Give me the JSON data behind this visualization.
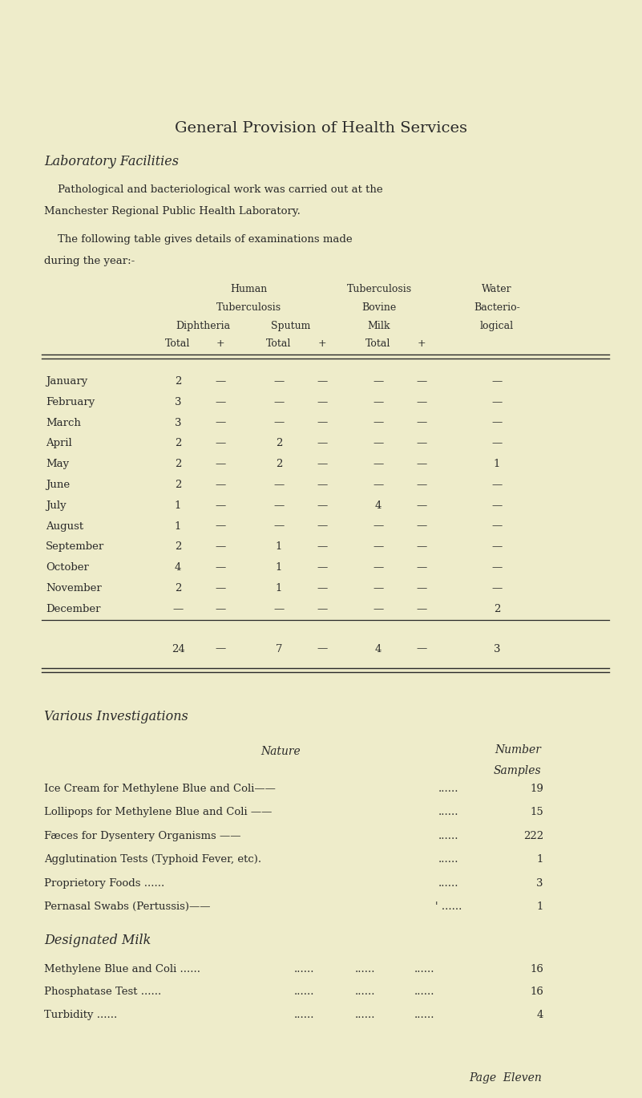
{
  "bg_color": "#eeecca",
  "text_color": "#2a2a2a",
  "title": "General Provision of Health Services",
  "subtitle": "Laboratory Facilities",
  "para1a": "Pathological and bacteriological work was carried out at the",
  "para1b": "Manchester Regional Public Health Laboratory.",
  "para2a": "The following table gives details of examinations made",
  "para2b": "during the year:-",
  "months": [
    "January",
    "February",
    "March",
    "April",
    "May",
    "June",
    "July",
    "August",
    "September",
    "October",
    "November",
    "December"
  ],
  "table_data": [
    [
      "2",
      "—",
      "—",
      "—",
      "—",
      "—",
      "—"
    ],
    [
      "3",
      "—",
      "—",
      "—",
      "—",
      "—",
      "—"
    ],
    [
      "3",
      "—",
      "—",
      "—",
      "—",
      "—",
      "—"
    ],
    [
      "2",
      "—",
      "2",
      "—",
      "—",
      "—",
      "—"
    ],
    [
      "2",
      "—",
      "2",
      "—",
      "—",
      "—",
      "1"
    ],
    [
      "2",
      "—",
      "—",
      "—",
      "—",
      "—",
      "—"
    ],
    [
      "1",
      "—",
      "—",
      "—",
      "4",
      "—",
      "—"
    ],
    [
      "1",
      "—",
      "—",
      "—",
      "—",
      "—",
      "—"
    ],
    [
      "2",
      "—",
      "1",
      "—",
      "—",
      "—",
      "—"
    ],
    [
      "4",
      "—",
      "1",
      "—",
      "—",
      "—",
      "—"
    ],
    [
      "2",
      "—",
      "1",
      "—",
      "—",
      "—",
      "—"
    ],
    [
      "—",
      "—",
      "—",
      "—",
      "—",
      "—",
      "2"
    ]
  ],
  "totals": [
    "24",
    "—",
    "7",
    "—",
    "4",
    "—",
    "3"
  ],
  "various_title": "Various Investigations",
  "various_nature": "Nature",
  "various_number": "Number",
  "various_samples": "Samples",
  "various_items": [
    {
      "text": "Ice Cream for Methylene Blue and Coli——",
      "dots": "......",
      "num": "19"
    },
    {
      "text": "Lollipops for Methylene Blue and Coli ——",
      "dots": "......",
      "num": "15"
    },
    {
      "text": "Fæces for Dysentery Organisms ——",
      "dots": "......",
      "num": "222"
    },
    {
      "text": "Agglutination Tests (Typhoid Fever, etc).",
      "dots": "......",
      "num": "1"
    },
    {
      "text": "Proprietory Foods ......",
      "dots": "......",
      "num": "3"
    },
    {
      "text": "Pernasal Swabs (Pertussis)——",
      "dots": "' ......",
      "num": "1"
    }
  ],
  "designated_title": "Designated Milk",
  "designated_items": [
    {
      "text": "Methylene Blue and Coli ......",
      "dots": "......",
      "num": "16"
    },
    {
      "text": "Phosphatase Test ......",
      "dots": "......",
      "num": "16"
    },
    {
      "text": "Turbidity ......",
      "dots": "......",
      "num": "4"
    }
  ],
  "page_label": "Page  Eleven"
}
